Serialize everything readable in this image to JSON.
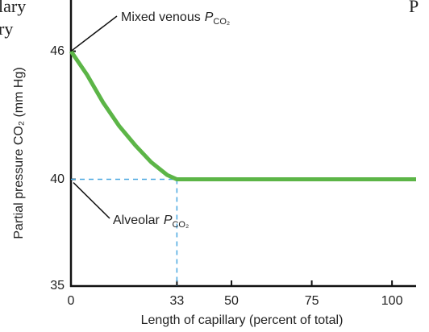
{
  "chart_data": {
    "type": "line",
    "xlabel": "Length of capillary (percent of total)",
    "ylabel": "Partial pressure CO₂ (mm Hg)",
    "x": [
      0,
      5,
      10,
      15,
      20,
      25,
      30,
      33,
      50,
      75,
      100,
      107.5
    ],
    "series": [
      {
        "color": "#5cb547",
        "values": [
          46,
          44.9,
          43.6,
          42.5,
          41.6,
          40.8,
          40.2,
          40,
          40,
          40,
          40,
          40
        ]
      }
    ],
    "xlim": [
      0,
      107.5
    ],
    "ylim": [
      35,
      48.4
    ],
    "xticks": [
      0,
      33,
      50,
      75,
      100
    ],
    "yticks": [
      35,
      40,
      46
    ],
    "annotations": [
      {
        "text": "Mixed venous",
        "symbol": "P",
        "subscript": "CO₂"
      },
      {
        "text": "Alveolar",
        "symbol": "P",
        "subscript": "CO₂"
      }
    ],
    "cropped_text": [
      "lary",
      "ry",
      "P"
    ]
  }
}
